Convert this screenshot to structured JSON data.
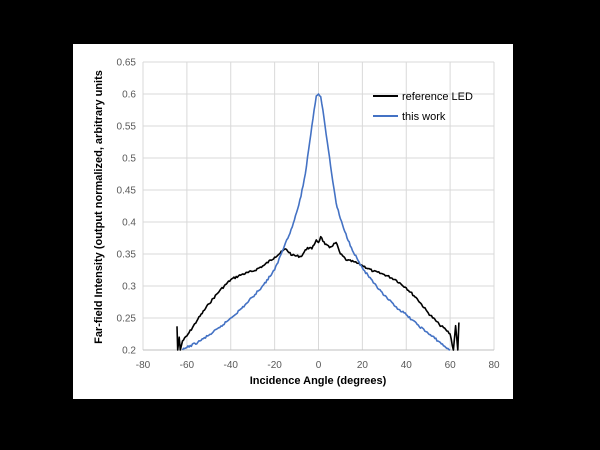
{
  "chart_data": {
    "type": "line",
    "title": "",
    "xlabel": "Incidence Angle (degrees)",
    "ylabel": "Far-field Intensity (output normalized, arbitrary units",
    "xlim": [
      -80,
      80
    ],
    "ylim": [
      0.2,
      0.65
    ],
    "x_ticks": [
      "-80",
      "-60",
      "-40",
      "-20",
      "0",
      "20",
      "40",
      "60",
      "80"
    ],
    "y_ticks": [
      "0.2",
      "0.25",
      "0.3",
      "0.35",
      "0.4",
      "0.45",
      "0.5",
      "0.55",
      "0.6",
      "0.65"
    ],
    "grid": true,
    "legend_position": "top-right",
    "series": [
      {
        "name": "reference LED",
        "color": "#000000",
        "points": [
          [
            -64.5,
            0.237
          ],
          [
            -64.2,
            0.2
          ],
          [
            -63.5,
            0.22
          ],
          [
            -63,
            0.2
          ],
          [
            -62,
            0.214
          ],
          [
            -60,
            0.222
          ],
          [
            -55,
            0.248
          ],
          [
            -50,
            0.272
          ],
          [
            -45,
            0.293
          ],
          [
            -40,
            0.31
          ],
          [
            -35,
            0.318
          ],
          [
            -30,
            0.323
          ],
          [
            -25,
            0.332
          ],
          [
            -20,
            0.345
          ],
          [
            -15,
            0.358
          ],
          [
            -12,
            0.348
          ],
          [
            -8,
            0.346
          ],
          [
            -5,
            0.36
          ],
          [
            -3,
            0.358
          ],
          [
            -1,
            0.372
          ],
          [
            0,
            0.368
          ],
          [
            1,
            0.377
          ],
          [
            3,
            0.365
          ],
          [
            5,
            0.36
          ],
          [
            8,
            0.368
          ],
          [
            10,
            0.35
          ],
          [
            13,
            0.34
          ],
          [
            16,
            0.338
          ],
          [
            20,
            0.332
          ],
          [
            25,
            0.323
          ],
          [
            30,
            0.318
          ],
          [
            35,
            0.31
          ],
          [
            40,
            0.297
          ],
          [
            45,
            0.28
          ],
          [
            50,
            0.258
          ],
          [
            55,
            0.24
          ],
          [
            58,
            0.232
          ],
          [
            60,
            0.225
          ],
          [
            61.5,
            0.2
          ],
          [
            62.5,
            0.238
          ],
          [
            63.5,
            0.2
          ],
          [
            64,
            0.243
          ]
        ]
      },
      {
        "name": "this work",
        "color": "#4472C4",
        "points": [
          [
            -62,
            0.2
          ],
          [
            -60,
            0.204
          ],
          [
            -55,
            0.212
          ],
          [
            -50,
            0.223
          ],
          [
            -45,
            0.235
          ],
          [
            -40,
            0.25
          ],
          [
            -35,
            0.265
          ],
          [
            -30,
            0.283
          ],
          [
            -25,
            0.302
          ],
          [
            -20,
            0.325
          ],
          [
            -17,
            0.35
          ],
          [
            -15,
            0.368
          ],
          [
            -12,
            0.392
          ],
          [
            -10,
            0.415
          ],
          [
            -8,
            0.44
          ],
          [
            -6,
            0.475
          ],
          [
            -4,
            0.525
          ],
          [
            -2,
            0.575
          ],
          [
            -1,
            0.597
          ],
          [
            0,
            0.6
          ],
          [
            1,
            0.596
          ],
          [
            2,
            0.575
          ],
          [
            4,
            0.525
          ],
          [
            6,
            0.475
          ],
          [
            8,
            0.43
          ],
          [
            10,
            0.405
          ],
          [
            12,
            0.385
          ],
          [
            15,
            0.36
          ],
          [
            18,
            0.34
          ],
          [
            20,
            0.328
          ],
          [
            25,
            0.305
          ],
          [
            30,
            0.285
          ],
          [
            35,
            0.268
          ],
          [
            40,
            0.255
          ],
          [
            45,
            0.24
          ],
          [
            50,
            0.226
          ],
          [
            55,
            0.213
          ],
          [
            58,
            0.204
          ],
          [
            60,
            0.2
          ]
        ]
      }
    ]
  }
}
